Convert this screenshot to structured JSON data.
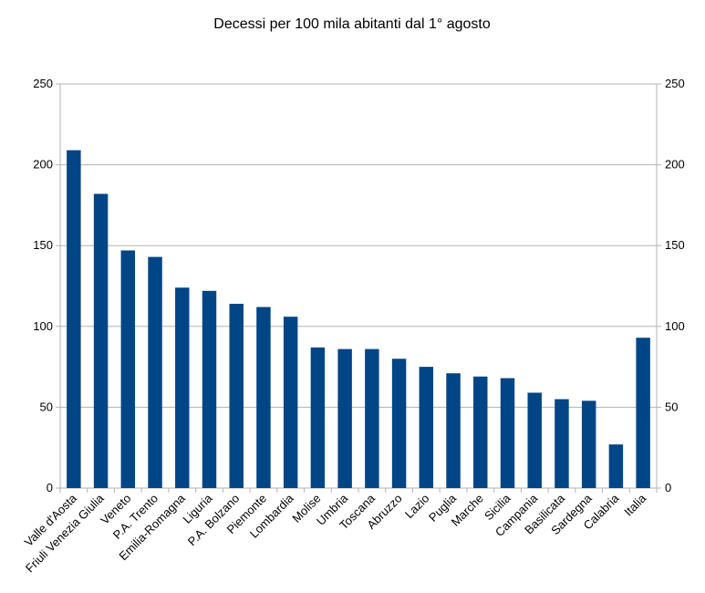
{
  "chart_data": {
    "type": "bar",
    "title": "Decessi per 100 mila abitanti dal 1° agosto",
    "xlabel": "",
    "ylabel": "",
    "ylim": [
      0,
      250
    ],
    "yticks": [
      0,
      50,
      100,
      150,
      200,
      250
    ],
    "grid": true,
    "legend": "none",
    "bar_color": "#004586",
    "categories": [
      "Valle d'Aosta",
      "Friuli Venezia Giulia",
      "Veneto",
      "P.A. Trento",
      "Emilia-Romagna",
      "Liguria",
      "P.A. Bolzano",
      "Piemonte",
      "Lombardia",
      "Molise",
      "Umbria",
      "Toscana",
      "Abruzzo",
      "Lazio",
      "Puglia",
      "Marche",
      "Sicilia",
      "Campania",
      "Basilicata",
      "Sardegna",
      "Calabria",
      "Italia"
    ],
    "values": [
      209,
      182,
      147,
      143,
      124,
      122,
      114,
      112,
      106,
      87,
      86,
      86,
      80,
      75,
      71,
      69,
      68,
      59,
      55,
      54,
      27,
      93
    ]
  }
}
